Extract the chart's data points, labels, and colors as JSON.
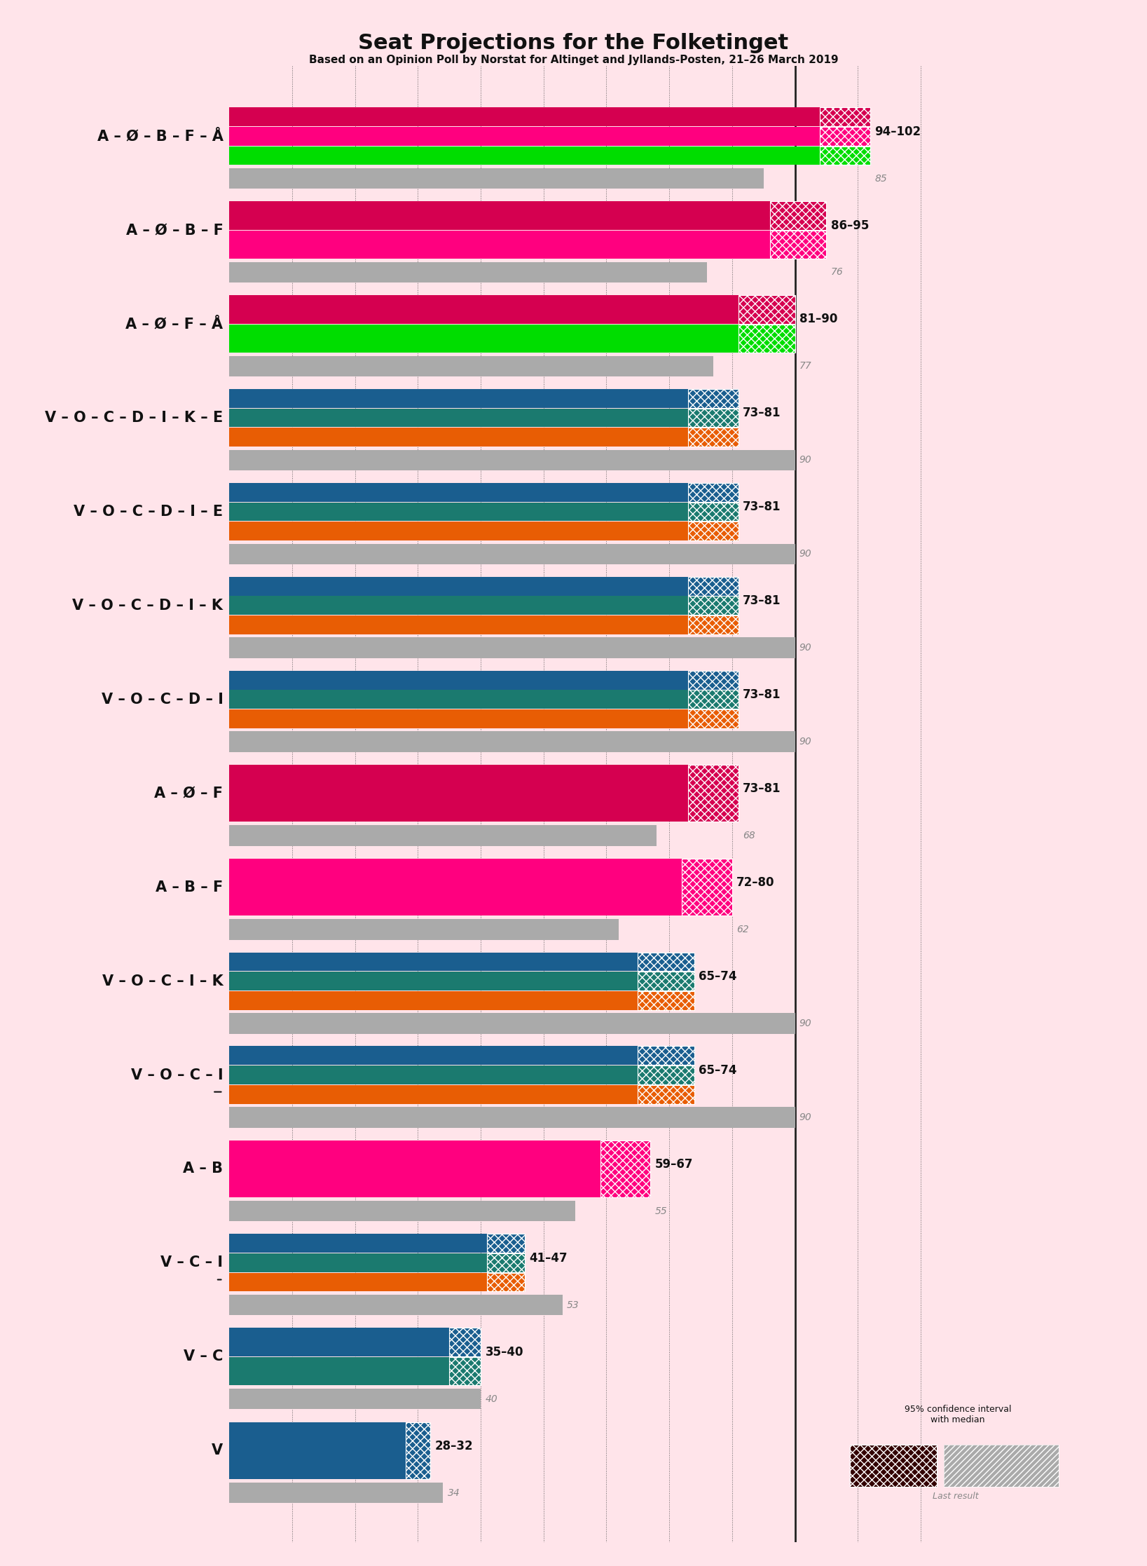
{
  "title": "Seat Projections for the Folketinget",
  "subtitle": "Based on an Opinion Poll by Norstat for Altinget and Jyllands-Posten, 21–26 March 2019",
  "bg": "#FFE4EA",
  "majority": 90,
  "x_max": 115,
  "coalitions": [
    {
      "label": "A – Ø – B – F – Å",
      "low": 94,
      "high": 102,
      "last": 85,
      "underline": false,
      "stripes": [
        "#D50050",
        "#FF007F",
        "#00DD00"
      ],
      "ci_colors": [
        "#D50050",
        "#FF007F",
        "#00DD00"
      ]
    },
    {
      "label": "A – Ø – B – F",
      "low": 86,
      "high": 95,
      "last": 76,
      "underline": false,
      "stripes": [
        "#D50050",
        "#FF007F"
      ],
      "ci_colors": [
        "#D50050",
        "#FF007F"
      ]
    },
    {
      "label": "A – Ø – F – Å",
      "low": 81,
      "high": 90,
      "last": 77,
      "underline": false,
      "stripes": [
        "#D50050",
        "#00DD00"
      ],
      "ci_colors": [
        "#D50050",
        "#00DD00"
      ]
    },
    {
      "label": "V – O – C – D – I – K – E",
      "low": 73,
      "high": 81,
      "last": 90,
      "underline": false,
      "stripes": [
        "#1A5E8F",
        "#1B7A6F",
        "#E85D04"
      ],
      "ci_colors": [
        "#1A5E8F",
        "#1B7A6F",
        "#E85D04"
      ]
    },
    {
      "label": "V – O – C – D – I – E",
      "low": 73,
      "high": 81,
      "last": 90,
      "underline": false,
      "stripes": [
        "#1A5E8F",
        "#1B7A6F",
        "#E85D04"
      ],
      "ci_colors": [
        "#1A5E8F",
        "#1B7A6F",
        "#E85D04"
      ]
    },
    {
      "label": "V – O – C – D – I – K",
      "low": 73,
      "high": 81,
      "last": 90,
      "underline": false,
      "stripes": [
        "#1A5E8F",
        "#1B7A6F",
        "#E85D04"
      ],
      "ci_colors": [
        "#1A5E8F",
        "#1B7A6F",
        "#E85D04"
      ]
    },
    {
      "label": "V – O – C – D – I",
      "low": 73,
      "high": 81,
      "last": 90,
      "underline": false,
      "stripes": [
        "#1A5E8F",
        "#1B7A6F",
        "#E85D04"
      ],
      "ci_colors": [
        "#1A5E8F",
        "#1B7A6F",
        "#E85D04"
      ]
    },
    {
      "label": "A – Ø – F",
      "low": 73,
      "high": 81,
      "last": 68,
      "underline": false,
      "stripes": [
        "#D50050"
      ],
      "ci_colors": [
        "#D50050"
      ]
    },
    {
      "label": "A – B – F",
      "low": 72,
      "high": 80,
      "last": 62,
      "underline": false,
      "stripes": [
        "#FF007F"
      ],
      "ci_colors": [
        "#FF007F"
      ]
    },
    {
      "label": "V – O – C – I – K",
      "low": 65,
      "high": 74,
      "last": 90,
      "underline": false,
      "stripes": [
        "#1A5E8F",
        "#1B7A6F",
        "#E85D04"
      ],
      "ci_colors": [
        "#1A5E8F",
        "#1B7A6F",
        "#E85D04"
      ]
    },
    {
      "label": "V – O – C – I",
      "low": 65,
      "high": 74,
      "last": 90,
      "underline": true,
      "stripes": [
        "#1A5E8F",
        "#1B7A6F",
        "#E85D04"
      ],
      "ci_colors": [
        "#1A5E8F",
        "#1B7A6F",
        "#E85D04"
      ]
    },
    {
      "label": "A – B",
      "low": 59,
      "high": 67,
      "last": 55,
      "underline": false,
      "stripes": [
        "#FF007F"
      ],
      "ci_colors": [
        "#FF007F"
      ]
    },
    {
      "label": "V – C – I",
      "low": 41,
      "high": 47,
      "last": 53,
      "underline": true,
      "stripes": [
        "#1A5E8F",
        "#1B7A6F",
        "#E85D04"
      ],
      "ci_colors": [
        "#1A5E8F",
        "#1B7A6F",
        "#E85D04"
      ]
    },
    {
      "label": "V – C",
      "low": 35,
      "high": 40,
      "last": 40,
      "underline": false,
      "stripes": [
        "#1A5E8F",
        "#1B7A6F"
      ],
      "ci_colors": [
        "#1A5E8F",
        "#1B7A6F"
      ]
    },
    {
      "label": "V",
      "low": 28,
      "high": 32,
      "last": 34,
      "underline": false,
      "stripes": [
        "#1A5E8F"
      ],
      "ci_colors": [
        "#1A5E8F"
      ]
    }
  ]
}
